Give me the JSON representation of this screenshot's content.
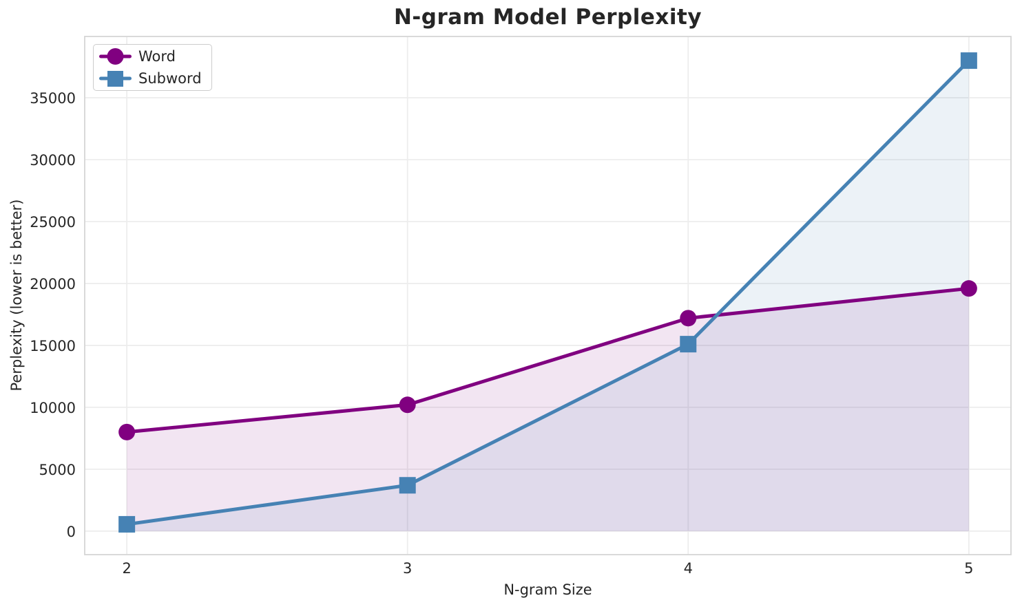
{
  "chart_data": {
    "type": "line",
    "title": "N-gram Model Perplexity",
    "xlabel": "N-gram Size",
    "ylabel": "Perplexity (lower is better)",
    "x": [
      2,
      3,
      4,
      5
    ],
    "x_tick_labels": [
      "2",
      "3",
      "4",
      "5"
    ],
    "y_ticks": [
      0,
      5000,
      10000,
      15000,
      20000,
      25000,
      30000,
      35000
    ],
    "y_tick_labels": [
      "0",
      "5000",
      "10000",
      "15000",
      "20000",
      "25000",
      "30000",
      "35000"
    ],
    "xlim": [
      1.85,
      5.15
    ],
    "ylim": [
      -1900,
      39950
    ],
    "grid": true,
    "legend_position": "upper-left",
    "fill_to_zero": true,
    "fill_opacity": 0.1,
    "series": [
      {
        "name": "Word",
        "marker": "circle",
        "color": "#800080",
        "values": [
          8000,
          10200,
          17200,
          19600
        ]
      },
      {
        "name": "Subword",
        "marker": "square",
        "color": "#4682B4",
        "values": [
          550,
          3700,
          15100,
          38000
        ]
      }
    ]
  },
  "colors": {
    "background": "#FFFFFF",
    "grid": "#EDEDED",
    "spine": "#D5D5D5",
    "text": "#262626",
    "legend_border": "#CCCCCC"
  }
}
